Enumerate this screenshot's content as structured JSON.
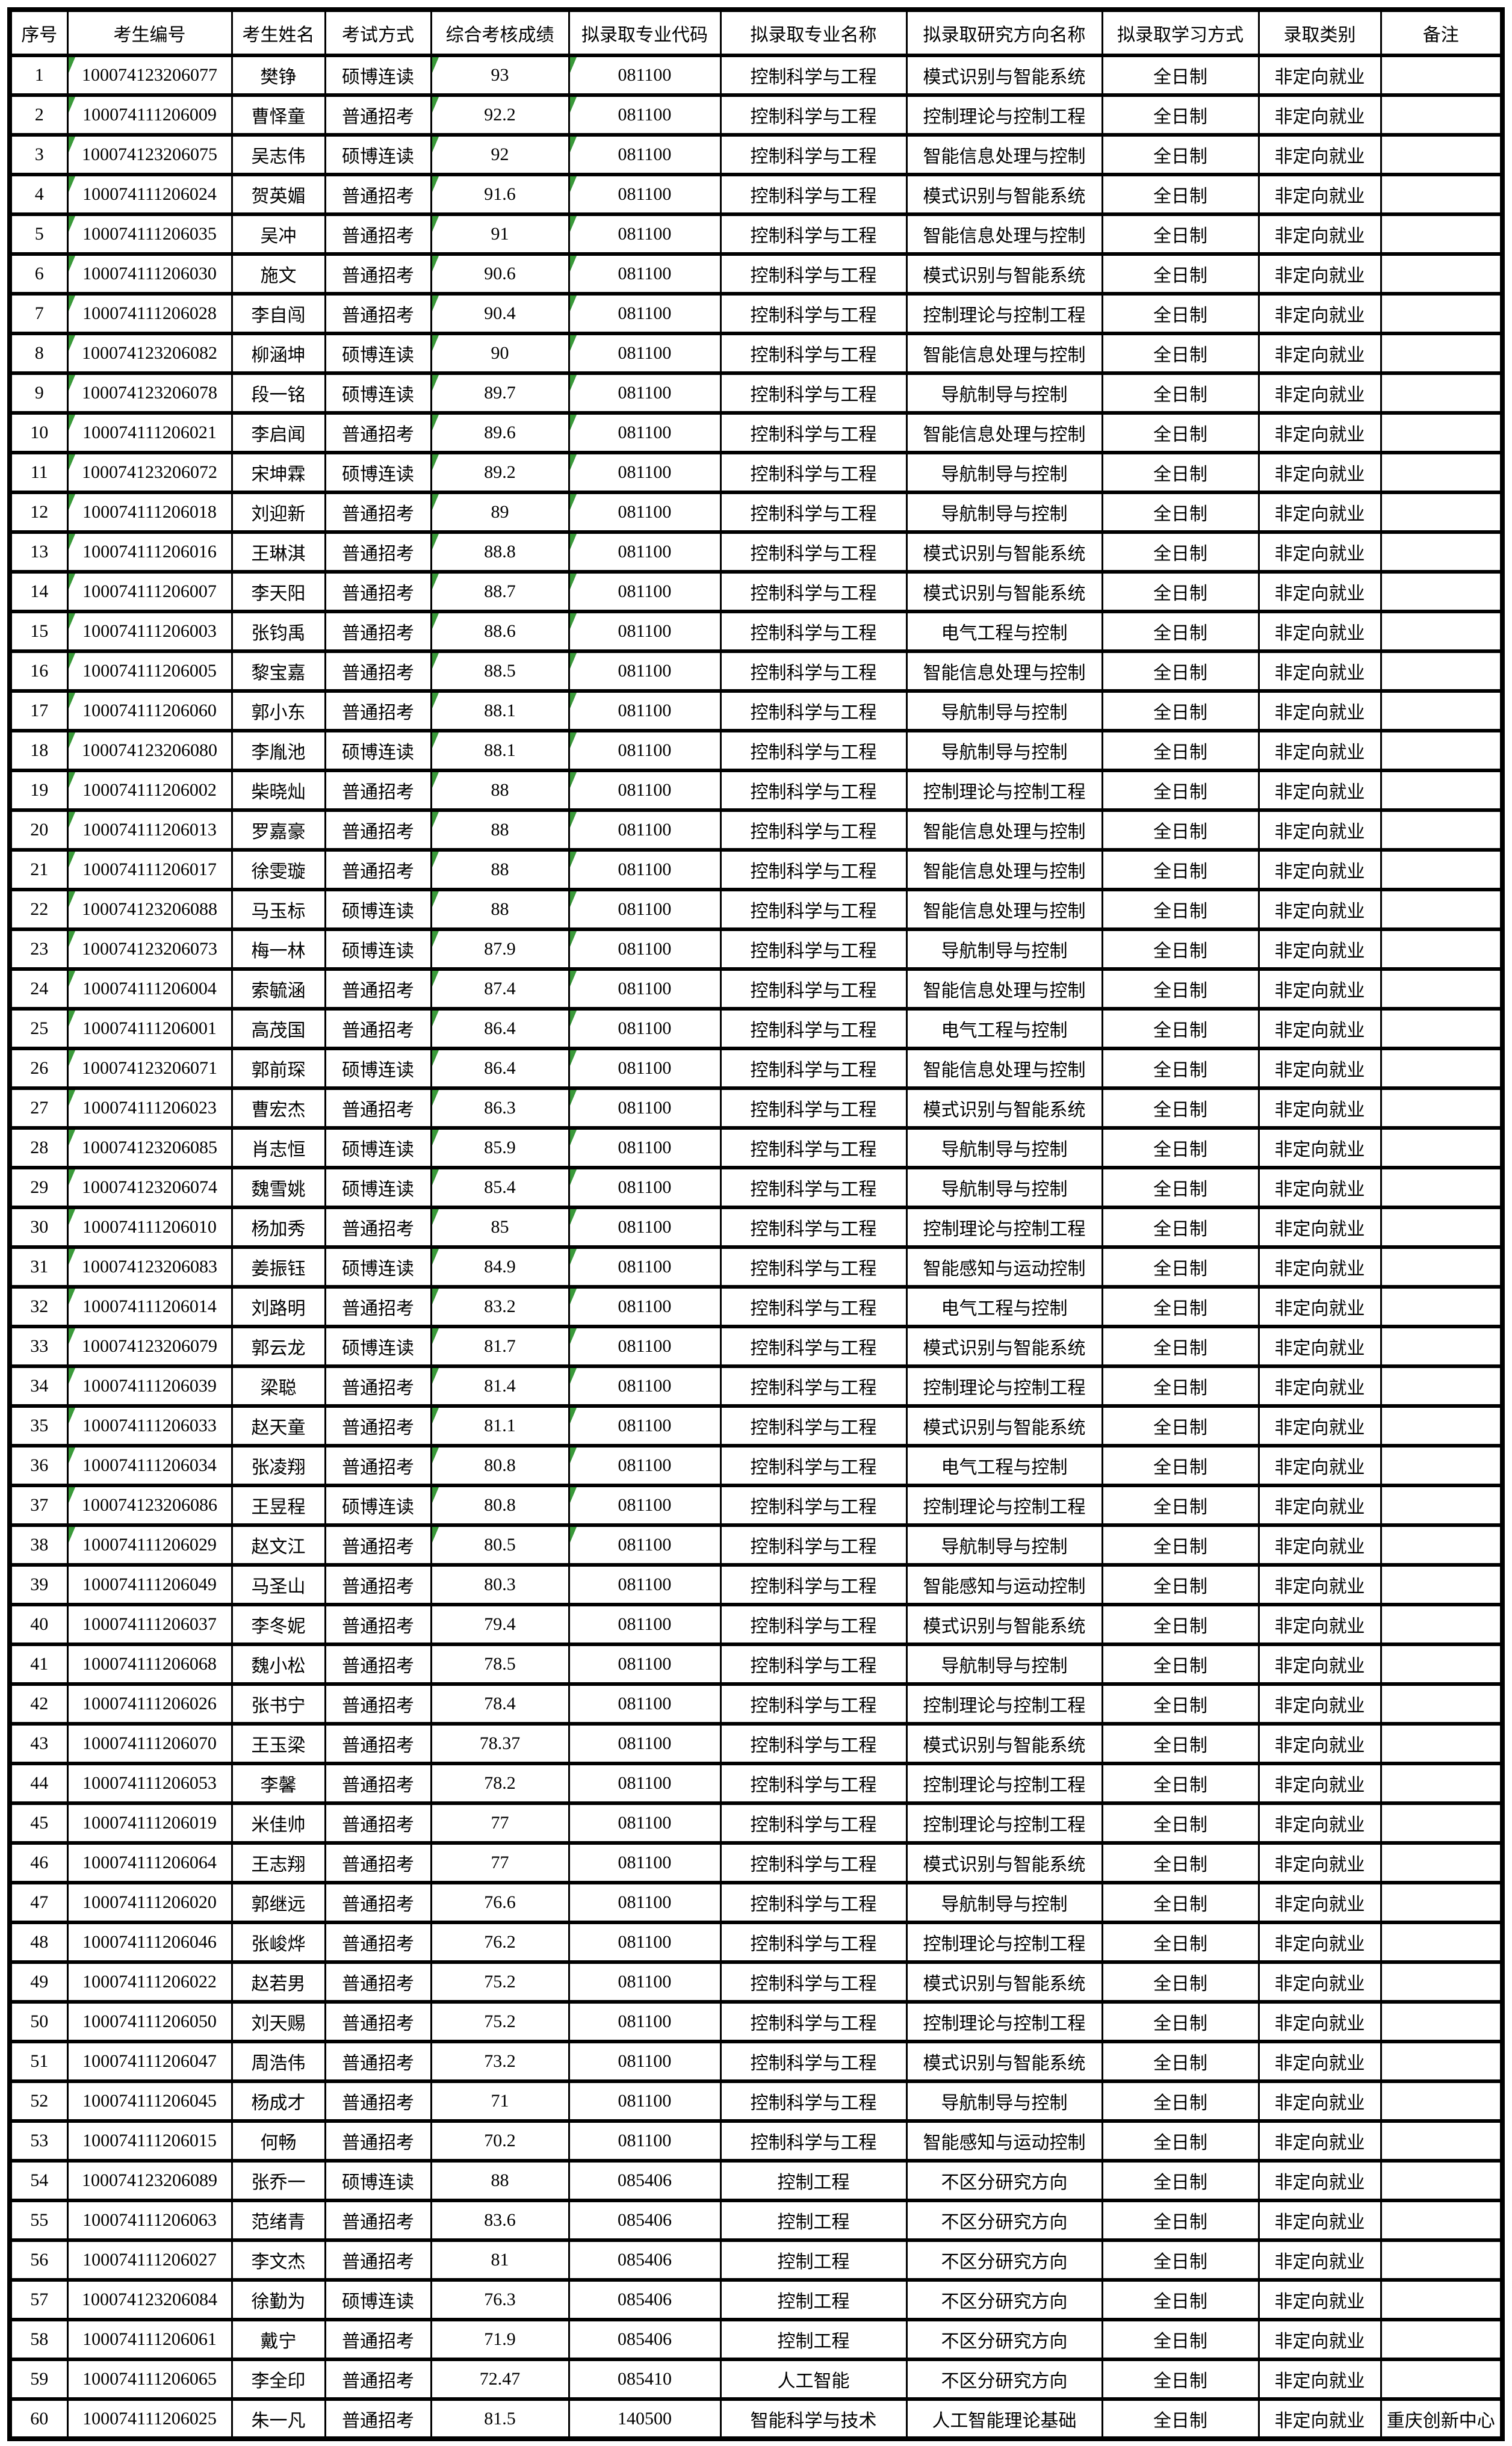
{
  "table": {
    "marker_color": "#3a9a3a",
    "headers": [
      "序号",
      "考生编号",
      "考生姓名",
      "考试方式",
      "综合考核成绩",
      "拟录取专业代码",
      "拟录取专业名称",
      "拟录取研究方向名称",
      "拟录取学习方式",
      "录取类别",
      "备注"
    ],
    "rows": [
      {
        "seq": "1",
        "id": "100074123206077",
        "name": "樊铮",
        "method": "硕博连读",
        "score": "93",
        "code": "081100",
        "major": "控制科学与工程",
        "direction": "模式识别与智能系统",
        "mode": "全日制",
        "category": "非定向就业",
        "remark": "",
        "marker": true
      },
      {
        "seq": "2",
        "id": "100074111206009",
        "name": "曹怿童",
        "method": "普通招考",
        "score": "92.2",
        "code": "081100",
        "major": "控制科学与工程",
        "direction": "控制理论与控制工程",
        "mode": "全日制",
        "category": "非定向就业",
        "remark": "",
        "marker": true
      },
      {
        "seq": "3",
        "id": "100074123206075",
        "name": "吴志伟",
        "method": "硕博连读",
        "score": "92",
        "code": "081100",
        "major": "控制科学与工程",
        "direction": "智能信息处理与控制",
        "mode": "全日制",
        "category": "非定向就业",
        "remark": "",
        "marker": true
      },
      {
        "seq": "4",
        "id": "100074111206024",
        "name": "贺英媚",
        "method": "普通招考",
        "score": "91.6",
        "code": "081100",
        "major": "控制科学与工程",
        "direction": "模式识别与智能系统",
        "mode": "全日制",
        "category": "非定向就业",
        "remark": "",
        "marker": true
      },
      {
        "seq": "5",
        "id": "100074111206035",
        "name": "吴冲",
        "method": "普通招考",
        "score": "91",
        "code": "081100",
        "major": "控制科学与工程",
        "direction": "智能信息处理与控制",
        "mode": "全日制",
        "category": "非定向就业",
        "remark": "",
        "marker": true
      },
      {
        "seq": "6",
        "id": "100074111206030",
        "name": "施文",
        "method": "普通招考",
        "score": "90.6",
        "code": "081100",
        "major": "控制科学与工程",
        "direction": "模式识别与智能系统",
        "mode": "全日制",
        "category": "非定向就业",
        "remark": "",
        "marker": true
      },
      {
        "seq": "7",
        "id": "100074111206028",
        "name": "李自闯",
        "method": "普通招考",
        "score": "90.4",
        "code": "081100",
        "major": "控制科学与工程",
        "direction": "控制理论与控制工程",
        "mode": "全日制",
        "category": "非定向就业",
        "remark": "",
        "marker": true
      },
      {
        "seq": "8",
        "id": "100074123206082",
        "name": "柳涵坤",
        "method": "硕博连读",
        "score": "90",
        "code": "081100",
        "major": "控制科学与工程",
        "direction": "智能信息处理与控制",
        "mode": "全日制",
        "category": "非定向就业",
        "remark": "",
        "marker": true
      },
      {
        "seq": "9",
        "id": "100074123206078",
        "name": "段一铭",
        "method": "硕博连读",
        "score": "89.7",
        "code": "081100",
        "major": "控制科学与工程",
        "direction": "导航制导与控制",
        "mode": "全日制",
        "category": "非定向就业",
        "remark": "",
        "marker": true
      },
      {
        "seq": "10",
        "id": "100074111206021",
        "name": "李启闻",
        "method": "普通招考",
        "score": "89.6",
        "code": "081100",
        "major": "控制科学与工程",
        "direction": "智能信息处理与控制",
        "mode": "全日制",
        "category": "非定向就业",
        "remark": "",
        "marker": true
      },
      {
        "seq": "11",
        "id": "100074123206072",
        "name": "宋坤霖",
        "method": "硕博连读",
        "score": "89.2",
        "code": "081100",
        "major": "控制科学与工程",
        "direction": "导航制导与控制",
        "mode": "全日制",
        "category": "非定向就业",
        "remark": "",
        "marker": true
      },
      {
        "seq": "12",
        "id": "100074111206018",
        "name": "刘迎新",
        "method": "普通招考",
        "score": "89",
        "code": "081100",
        "major": "控制科学与工程",
        "direction": "导航制导与控制",
        "mode": "全日制",
        "category": "非定向就业",
        "remark": "",
        "marker": true
      },
      {
        "seq": "13",
        "id": "100074111206016",
        "name": "王琳淇",
        "method": "普通招考",
        "score": "88.8",
        "code": "081100",
        "major": "控制科学与工程",
        "direction": "模式识别与智能系统",
        "mode": "全日制",
        "category": "非定向就业",
        "remark": "",
        "marker": true
      },
      {
        "seq": "14",
        "id": "100074111206007",
        "name": "李天阳",
        "method": "普通招考",
        "score": "88.7",
        "code": "081100",
        "major": "控制科学与工程",
        "direction": "模式识别与智能系统",
        "mode": "全日制",
        "category": "非定向就业",
        "remark": "",
        "marker": true
      },
      {
        "seq": "15",
        "id": "100074111206003",
        "name": "张钧禹",
        "method": "普通招考",
        "score": "88.6",
        "code": "081100",
        "major": "控制科学与工程",
        "direction": "电气工程与控制",
        "mode": "全日制",
        "category": "非定向就业",
        "remark": "",
        "marker": true
      },
      {
        "seq": "16",
        "id": "100074111206005",
        "name": "黎宝嘉",
        "method": "普通招考",
        "score": "88.5",
        "code": "081100",
        "major": "控制科学与工程",
        "direction": "智能信息处理与控制",
        "mode": "全日制",
        "category": "非定向就业",
        "remark": "",
        "marker": true
      },
      {
        "seq": "17",
        "id": "100074111206060",
        "name": "郭小东",
        "method": "普通招考",
        "score": "88.1",
        "code": "081100",
        "major": "控制科学与工程",
        "direction": "导航制导与控制",
        "mode": "全日制",
        "category": "非定向就业",
        "remark": "",
        "marker": true
      },
      {
        "seq": "18",
        "id": "100074123206080",
        "name": "李胤池",
        "method": "硕博连读",
        "score": "88.1",
        "code": "081100",
        "major": "控制科学与工程",
        "direction": "导航制导与控制",
        "mode": "全日制",
        "category": "非定向就业",
        "remark": "",
        "marker": true
      },
      {
        "seq": "19",
        "id": "100074111206002",
        "name": "柴晓灿",
        "method": "普通招考",
        "score": "88",
        "code": "081100",
        "major": "控制科学与工程",
        "direction": "控制理论与控制工程",
        "mode": "全日制",
        "category": "非定向就业",
        "remark": "",
        "marker": true
      },
      {
        "seq": "20",
        "id": "100074111206013",
        "name": "罗嘉豪",
        "method": "普通招考",
        "score": "88",
        "code": "081100",
        "major": "控制科学与工程",
        "direction": "智能信息处理与控制",
        "mode": "全日制",
        "category": "非定向就业",
        "remark": "",
        "marker": true
      },
      {
        "seq": "21",
        "id": "100074111206017",
        "name": "徐雯璇",
        "method": "普通招考",
        "score": "88",
        "code": "081100",
        "major": "控制科学与工程",
        "direction": "智能信息处理与控制",
        "mode": "全日制",
        "category": "非定向就业",
        "remark": "",
        "marker": true
      },
      {
        "seq": "22",
        "id": "100074123206088",
        "name": "马玉标",
        "method": "硕博连读",
        "score": "88",
        "code": "081100",
        "major": "控制科学与工程",
        "direction": "智能信息处理与控制",
        "mode": "全日制",
        "category": "非定向就业",
        "remark": "",
        "marker": true
      },
      {
        "seq": "23",
        "id": "100074123206073",
        "name": "梅一林",
        "method": "硕博连读",
        "score": "87.9",
        "code": "081100",
        "major": "控制科学与工程",
        "direction": "导航制导与控制",
        "mode": "全日制",
        "category": "非定向就业",
        "remark": "",
        "marker": true
      },
      {
        "seq": "24",
        "id": "100074111206004",
        "name": "索毓涵",
        "method": "普通招考",
        "score": "87.4",
        "code": "081100",
        "major": "控制科学与工程",
        "direction": "智能信息处理与控制",
        "mode": "全日制",
        "category": "非定向就业",
        "remark": "",
        "marker": true
      },
      {
        "seq": "25",
        "id": "100074111206001",
        "name": "高茂国",
        "method": "普通招考",
        "score": "86.4",
        "code": "081100",
        "major": "控制科学与工程",
        "direction": "电气工程与控制",
        "mode": "全日制",
        "category": "非定向就业",
        "remark": "",
        "marker": true
      },
      {
        "seq": "26",
        "id": "100074123206071",
        "name": "郭前琛",
        "method": "硕博连读",
        "score": "86.4",
        "code": "081100",
        "major": "控制科学与工程",
        "direction": "智能信息处理与控制",
        "mode": "全日制",
        "category": "非定向就业",
        "remark": "",
        "marker": true
      },
      {
        "seq": "27",
        "id": "100074111206023",
        "name": "曹宏杰",
        "method": "普通招考",
        "score": "86.3",
        "code": "081100",
        "major": "控制科学与工程",
        "direction": "模式识别与智能系统",
        "mode": "全日制",
        "category": "非定向就业",
        "remark": "",
        "marker": true
      },
      {
        "seq": "28",
        "id": "100074123206085",
        "name": "肖志恒",
        "method": "硕博连读",
        "score": "85.9",
        "code": "081100",
        "major": "控制科学与工程",
        "direction": "导航制导与控制",
        "mode": "全日制",
        "category": "非定向就业",
        "remark": "",
        "marker": true
      },
      {
        "seq": "29",
        "id": "100074123206074",
        "name": "魏雪姚",
        "method": "硕博连读",
        "score": "85.4",
        "code": "081100",
        "major": "控制科学与工程",
        "direction": "导航制导与控制",
        "mode": "全日制",
        "category": "非定向就业",
        "remark": "",
        "marker": true
      },
      {
        "seq": "30",
        "id": "100074111206010",
        "name": "杨加秀",
        "method": "普通招考",
        "score": "85",
        "code": "081100",
        "major": "控制科学与工程",
        "direction": "控制理论与控制工程",
        "mode": "全日制",
        "category": "非定向就业",
        "remark": "",
        "marker": true
      },
      {
        "seq": "31",
        "id": "100074123206083",
        "name": "姜振钰",
        "method": "硕博连读",
        "score": "84.9",
        "code": "081100",
        "major": "控制科学与工程",
        "direction": "智能感知与运动控制",
        "mode": "全日制",
        "category": "非定向就业",
        "remark": "",
        "marker": true
      },
      {
        "seq": "32",
        "id": "100074111206014",
        "name": "刘路明",
        "method": "普通招考",
        "score": "83.2",
        "code": "081100",
        "major": "控制科学与工程",
        "direction": "电气工程与控制",
        "mode": "全日制",
        "category": "非定向就业",
        "remark": "",
        "marker": true
      },
      {
        "seq": "33",
        "id": "100074123206079",
        "name": "郭云龙",
        "method": "硕博连读",
        "score": "81.7",
        "code": "081100",
        "major": "控制科学与工程",
        "direction": "模式识别与智能系统",
        "mode": "全日制",
        "category": "非定向就业",
        "remark": "",
        "marker": true
      },
      {
        "seq": "34",
        "id": "100074111206039",
        "name": "梁聪",
        "method": "普通招考",
        "score": "81.4",
        "code": "081100",
        "major": "控制科学与工程",
        "direction": "控制理论与控制工程",
        "mode": "全日制",
        "category": "非定向就业",
        "remark": "",
        "marker": true
      },
      {
        "seq": "35",
        "id": "100074111206033",
        "name": "赵天童",
        "method": "普通招考",
        "score": "81.1",
        "code": "081100",
        "major": "控制科学与工程",
        "direction": "模式识别与智能系统",
        "mode": "全日制",
        "category": "非定向就业",
        "remark": "",
        "marker": true
      },
      {
        "seq": "36",
        "id": "100074111206034",
        "name": "张凌翔",
        "method": "普通招考",
        "score": "80.8",
        "code": "081100",
        "major": "控制科学与工程",
        "direction": "电气工程与控制",
        "mode": "全日制",
        "category": "非定向就业",
        "remark": "",
        "marker": true
      },
      {
        "seq": "37",
        "id": "100074123206086",
        "name": "王昱程",
        "method": "硕博连读",
        "score": "80.8",
        "code": "081100",
        "major": "控制科学与工程",
        "direction": "控制理论与控制工程",
        "mode": "全日制",
        "category": "非定向就业",
        "remark": "",
        "marker": true
      },
      {
        "seq": "38",
        "id": "100074111206029",
        "name": "赵文江",
        "method": "普通招考",
        "score": "80.5",
        "code": "081100",
        "major": "控制科学与工程",
        "direction": "导航制导与控制",
        "mode": "全日制",
        "category": "非定向就业",
        "remark": "",
        "marker": true
      },
      {
        "seq": "39",
        "id": "100074111206049",
        "name": "马圣山",
        "method": "普通招考",
        "score": "80.3",
        "code": "081100",
        "major": "控制科学与工程",
        "direction": "智能感知与运动控制",
        "mode": "全日制",
        "category": "非定向就业",
        "remark": "",
        "marker": false
      },
      {
        "seq": "40",
        "id": "100074111206037",
        "name": "李冬妮",
        "method": "普通招考",
        "score": "79.4",
        "code": "081100",
        "major": "控制科学与工程",
        "direction": "模式识别与智能系统",
        "mode": "全日制",
        "category": "非定向就业",
        "remark": "",
        "marker": false
      },
      {
        "seq": "41",
        "id": "100074111206068",
        "name": "魏小松",
        "method": "普通招考",
        "score": "78.5",
        "code": "081100",
        "major": "控制科学与工程",
        "direction": "导航制导与控制",
        "mode": "全日制",
        "category": "非定向就业",
        "remark": "",
        "marker": false
      },
      {
        "seq": "42",
        "id": "100074111206026",
        "name": "张书宁",
        "method": "普通招考",
        "score": "78.4",
        "code": "081100",
        "major": "控制科学与工程",
        "direction": "控制理论与控制工程",
        "mode": "全日制",
        "category": "非定向就业",
        "remark": "",
        "marker": false
      },
      {
        "seq": "43",
        "id": "100074111206070",
        "name": "王玉梁",
        "method": "普通招考",
        "score": "78.37",
        "code": "081100",
        "major": "控制科学与工程",
        "direction": "模式识别与智能系统",
        "mode": "全日制",
        "category": "非定向就业",
        "remark": "",
        "marker": false
      },
      {
        "seq": "44",
        "id": "100074111206053",
        "name": "李馨",
        "method": "普通招考",
        "score": "78.2",
        "code": "081100",
        "major": "控制科学与工程",
        "direction": "控制理论与控制工程",
        "mode": "全日制",
        "category": "非定向就业",
        "remark": "",
        "marker": false
      },
      {
        "seq": "45",
        "id": "100074111206019",
        "name": "米佳帅",
        "method": "普通招考",
        "score": "77",
        "code": "081100",
        "major": "控制科学与工程",
        "direction": "控制理论与控制工程",
        "mode": "全日制",
        "category": "非定向就业",
        "remark": "",
        "marker": false
      },
      {
        "seq": "46",
        "id": "100074111206064",
        "name": "王志翔",
        "method": "普通招考",
        "score": "77",
        "code": "081100",
        "major": "控制科学与工程",
        "direction": "模式识别与智能系统",
        "mode": "全日制",
        "category": "非定向就业",
        "remark": "",
        "marker": false
      },
      {
        "seq": "47",
        "id": "100074111206020",
        "name": "郭继远",
        "method": "普通招考",
        "score": "76.6",
        "code": "081100",
        "major": "控制科学与工程",
        "direction": "导航制导与控制",
        "mode": "全日制",
        "category": "非定向就业",
        "remark": "",
        "marker": false
      },
      {
        "seq": "48",
        "id": "100074111206046",
        "name": "张峻烨",
        "method": "普通招考",
        "score": "76.2",
        "code": "081100",
        "major": "控制科学与工程",
        "direction": "控制理论与控制工程",
        "mode": "全日制",
        "category": "非定向就业",
        "remark": "",
        "marker": false
      },
      {
        "seq": "49",
        "id": "100074111206022",
        "name": "赵若男",
        "method": "普通招考",
        "score": "75.2",
        "code": "081100",
        "major": "控制科学与工程",
        "direction": "模式识别与智能系统",
        "mode": "全日制",
        "category": "非定向就业",
        "remark": "",
        "marker": false
      },
      {
        "seq": "50",
        "id": "100074111206050",
        "name": "刘天赐",
        "method": "普通招考",
        "score": "75.2",
        "code": "081100",
        "major": "控制科学与工程",
        "direction": "控制理论与控制工程",
        "mode": "全日制",
        "category": "非定向就业",
        "remark": "",
        "marker": false
      },
      {
        "seq": "51",
        "id": "100074111206047",
        "name": "周浩伟",
        "method": "普通招考",
        "score": "73.2",
        "code": "081100",
        "major": "控制科学与工程",
        "direction": "模式识别与智能系统",
        "mode": "全日制",
        "category": "非定向就业",
        "remark": "",
        "marker": false
      },
      {
        "seq": "52",
        "id": "100074111206045",
        "name": "杨成才",
        "method": "普通招考",
        "score": "71",
        "code": "081100",
        "major": "控制科学与工程",
        "direction": "导航制导与控制",
        "mode": "全日制",
        "category": "非定向就业",
        "remark": "",
        "marker": false
      },
      {
        "seq": "53",
        "id": "100074111206015",
        "name": "何畅",
        "method": "普通招考",
        "score": "70.2",
        "code": "081100",
        "major": "控制科学与工程",
        "direction": "智能感知与运动控制",
        "mode": "全日制",
        "category": "非定向就业",
        "remark": "",
        "marker": false
      },
      {
        "seq": "54",
        "id": "100074123206089",
        "name": "张乔一",
        "method": "硕博连读",
        "score": "88",
        "code": "085406",
        "major": "控制工程",
        "direction": "不区分研究方向",
        "mode": "全日制",
        "category": "非定向就业",
        "remark": "",
        "marker": false
      },
      {
        "seq": "55",
        "id": "100074111206063",
        "name": "范绪青",
        "method": "普通招考",
        "score": "83.6",
        "code": "085406",
        "major": "控制工程",
        "direction": "不区分研究方向",
        "mode": "全日制",
        "category": "非定向就业",
        "remark": "",
        "marker": false
      },
      {
        "seq": "56",
        "id": "100074111206027",
        "name": "李文杰",
        "method": "普通招考",
        "score": "81",
        "code": "085406",
        "major": "控制工程",
        "direction": "不区分研究方向",
        "mode": "全日制",
        "category": "非定向就业",
        "remark": "",
        "marker": false
      },
      {
        "seq": "57",
        "id": "100074123206084",
        "name": "徐勤为",
        "method": "硕博连读",
        "score": "76.3",
        "code": "085406",
        "major": "控制工程",
        "direction": "不区分研究方向",
        "mode": "全日制",
        "category": "非定向就业",
        "remark": "",
        "marker": false
      },
      {
        "seq": "58",
        "id": "100074111206061",
        "name": "戴宁",
        "method": "普通招考",
        "score": "71.9",
        "code": "085406",
        "major": "控制工程",
        "direction": "不区分研究方向",
        "mode": "全日制",
        "category": "非定向就业",
        "remark": "",
        "marker": false
      },
      {
        "seq": "59",
        "id": "100074111206065",
        "name": "李全印",
        "method": "普通招考",
        "score": "72.47",
        "code": "085410",
        "major": "人工智能",
        "direction": "不区分研究方向",
        "mode": "全日制",
        "category": "非定向就业",
        "remark": "",
        "marker": false
      },
      {
        "seq": "60",
        "id": "100074111206025",
        "name": "朱一凡",
        "method": "普通招考",
        "score": "81.5",
        "code": "140500",
        "major": "智能科学与技术",
        "direction": "人工智能理论基础",
        "mode": "全日制",
        "category": "非定向就业",
        "remark": "重庆创新中心",
        "marker": false
      }
    ]
  }
}
